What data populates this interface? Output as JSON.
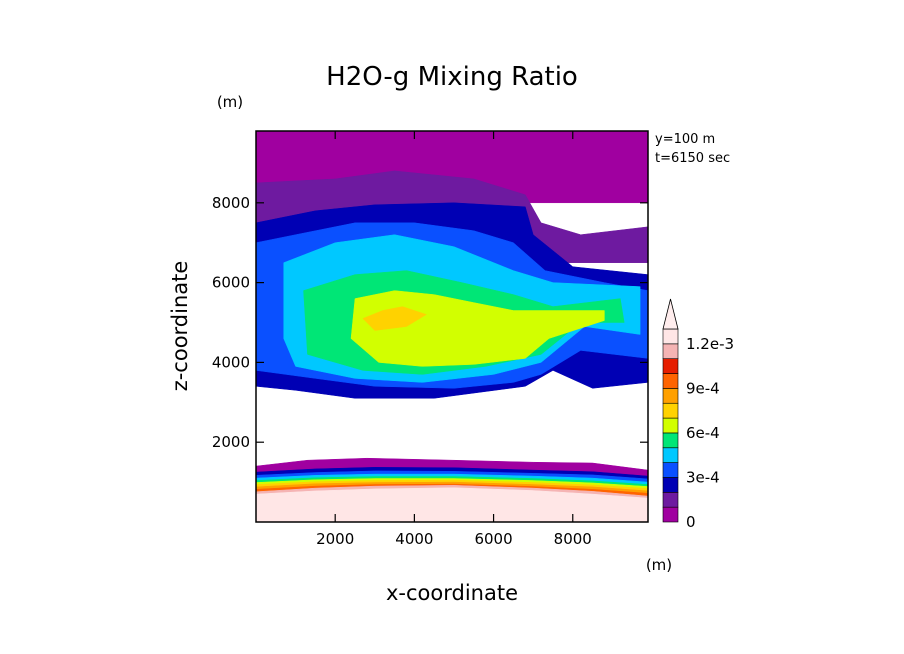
{
  "chart_data": {
    "type": "heatmap",
    "title": "H2O-g Mixing Ratio",
    "xlabel": "x-coordinate",
    "ylabel": "z-coordinate",
    "x_unit": "(m)",
    "y_unit": "(m)",
    "xlim": [
      0,
      9900
    ],
    "ylim": [
      0,
      9800
    ],
    "x_ticks": [
      "2000",
      "4000",
      "6000",
      "8000"
    ],
    "y_ticks": [
      "2000",
      "4000",
      "6000",
      "8000"
    ],
    "annotations": [
      "y=100 m",
      "t=6150 sec"
    ],
    "colorbar": {
      "tick_labels": [
        "0",
        "3e-4",
        "6e-4",
        "9e-4",
        "1.2e-3"
      ],
      "levels": [
        0,
        0.0001,
        0.0002,
        0.0003,
        0.0004,
        0.0005,
        0.0006,
        0.0007,
        0.0008,
        0.0009,
        0.001,
        0.0011,
        0.0012
      ],
      "colors": [
        "#a000a0",
        "#6e1aa0",
        "#0000b4",
        "#0a50ff",
        "#00c8ff",
        "#00e676",
        "#d2ff00",
        "#ffd200",
        "#ffa000",
        "#ff6400",
        "#e61e00",
        "#f5b4b4",
        "#ffe6e6"
      ],
      "extend": "max"
    },
    "layers": [
      {
        "level": 0,
        "color": "#a000a0",
        "points": [
          [
            0,
            9800
          ],
          [
            9900,
            9800
          ],
          [
            9900,
            8000
          ],
          [
            0,
            8000
          ]
        ]
      },
      {
        "level": 1,
        "color": "#6e1aa0",
        "points": [
          [
            0,
            8500
          ],
          [
            2000,
            8600
          ],
          [
            3500,
            8800
          ],
          [
            5500,
            8600
          ],
          [
            6800,
            8200
          ],
          [
            7200,
            7500
          ],
          [
            8200,
            7200
          ],
          [
            9900,
            7400
          ],
          [
            9900,
            6500
          ],
          [
            0,
            6500
          ]
        ]
      },
      {
        "level": 2,
        "color": "#0000b4",
        "points": [
          [
            0,
            7500
          ],
          [
            1500,
            7800
          ],
          [
            3000,
            7950
          ],
          [
            5000,
            8000
          ],
          [
            6800,
            7900
          ],
          [
            7000,
            7200
          ],
          [
            8000,
            6400
          ],
          [
            9900,
            6200
          ],
          [
            9900,
            3500
          ],
          [
            8500,
            3350
          ],
          [
            7500,
            3800
          ],
          [
            6800,
            3400
          ],
          [
            4500,
            3100
          ],
          [
            2500,
            3100
          ],
          [
            1000,
            3300
          ],
          [
            0,
            3400
          ]
        ]
      },
      {
        "level": 3,
        "color": "#0a50ff",
        "points": [
          [
            0,
            7000
          ],
          [
            1000,
            7200
          ],
          [
            2500,
            7500
          ],
          [
            4000,
            7500
          ],
          [
            5500,
            7300
          ],
          [
            6500,
            7000
          ],
          [
            7300,
            6300
          ],
          [
            8800,
            6000
          ],
          [
            9900,
            5800
          ],
          [
            9900,
            4100
          ],
          [
            8200,
            4300
          ],
          [
            7200,
            3700
          ],
          [
            6500,
            3500
          ],
          [
            5000,
            3350
          ],
          [
            3000,
            3400
          ],
          [
            1500,
            3600
          ],
          [
            0,
            3800
          ]
        ]
      },
      {
        "level": 4,
        "color": "#00c8ff",
        "points": [
          [
            700,
            6500
          ],
          [
            2000,
            7000
          ],
          [
            3500,
            7200
          ],
          [
            5000,
            6900
          ],
          [
            6500,
            6300
          ],
          [
            7500,
            6000
          ],
          [
            9700,
            5900
          ],
          [
            9700,
            4700
          ],
          [
            8300,
            4900
          ],
          [
            7200,
            4000
          ],
          [
            6000,
            3700
          ],
          [
            4200,
            3500
          ],
          [
            2500,
            3600
          ],
          [
            1000,
            3900
          ],
          [
            700,
            4600
          ]
        ]
      },
      {
        "level": 5,
        "color": "#00e676",
        "points": [
          [
            1200,
            5800
          ],
          [
            2500,
            6200
          ],
          [
            3800,
            6300
          ],
          [
            5200,
            6000
          ],
          [
            6500,
            5700
          ],
          [
            7500,
            5400
          ],
          [
            9200,
            5600
          ],
          [
            9300,
            5000
          ],
          [
            8200,
            5000
          ],
          [
            7200,
            4200
          ],
          [
            5800,
            3900
          ],
          [
            4200,
            3700
          ],
          [
            2700,
            3800
          ],
          [
            1300,
            4200
          ]
        ]
      },
      {
        "level": 6,
        "color": "#d2ff00",
        "points": [
          [
            2500,
            5600
          ],
          [
            3500,
            5800
          ],
          [
            4500,
            5700
          ],
          [
            5500,
            5500
          ],
          [
            6500,
            5300
          ],
          [
            7600,
            5300
          ],
          [
            8800,
            5300
          ],
          [
            8800,
            5050
          ],
          [
            7400,
            4600
          ],
          [
            6800,
            4100
          ],
          [
            5500,
            3950
          ],
          [
            4200,
            3900
          ],
          [
            3100,
            4000
          ],
          [
            2400,
            4600
          ]
        ]
      },
      {
        "level": 7,
        "color": "#ffd200",
        "points": [
          [
            2700,
            5100
          ],
          [
            3200,
            5300
          ],
          [
            3700,
            5400
          ],
          [
            4300,
            5200
          ],
          [
            3800,
            4900
          ],
          [
            3000,
            4800
          ]
        ]
      },
      {
        "level": 0,
        "color": "#a000a0",
        "points": [
          [
            0,
            1400
          ],
          [
            1300,
            1550
          ],
          [
            2800,
            1600
          ],
          [
            5000,
            1550
          ],
          [
            7000,
            1500
          ],
          [
            8500,
            1480
          ],
          [
            9900,
            1300
          ],
          [
            9900,
            500
          ],
          [
            0,
            500
          ]
        ]
      },
      {
        "level": 2,
        "color": "#0000b4",
        "points": [
          [
            0,
            1250
          ],
          [
            1500,
            1330
          ],
          [
            3000,
            1370
          ],
          [
            5000,
            1360
          ],
          [
            7000,
            1300
          ],
          [
            8500,
            1260
          ],
          [
            9900,
            1150
          ],
          [
            9900,
            500
          ],
          [
            0,
            500
          ]
        ]
      },
      {
        "level": 3,
        "color": "#0a50ff",
        "points": [
          [
            0,
            1170
          ],
          [
            1500,
            1240
          ],
          [
            3000,
            1280
          ],
          [
            5000,
            1270
          ],
          [
            7000,
            1220
          ],
          [
            8500,
            1180
          ],
          [
            9900,
            1080
          ],
          [
            9900,
            500
          ],
          [
            0,
            500
          ]
        ]
      },
      {
        "level": 4,
        "color": "#00c8ff",
        "points": [
          [
            0,
            1100
          ],
          [
            1500,
            1170
          ],
          [
            3000,
            1200
          ],
          [
            5000,
            1200
          ],
          [
            7000,
            1150
          ],
          [
            8500,
            1100
          ],
          [
            9900,
            1000
          ],
          [
            9900,
            500
          ],
          [
            0,
            500
          ]
        ]
      },
      {
        "level": 5,
        "color": "#00e676",
        "points": [
          [
            0,
            1040
          ],
          [
            1500,
            1110
          ],
          [
            3000,
            1140
          ],
          [
            5000,
            1140
          ],
          [
            7000,
            1090
          ],
          [
            8500,
            1030
          ],
          [
            9900,
            940
          ],
          [
            9900,
            500
          ],
          [
            0,
            500
          ]
        ]
      },
      {
        "level": 6,
        "color": "#d2ff00",
        "points": [
          [
            0,
            990
          ],
          [
            1500,
            1060
          ],
          [
            3000,
            1090
          ],
          [
            5000,
            1090
          ],
          [
            7000,
            1040
          ],
          [
            8500,
            980
          ],
          [
            9900,
            890
          ],
          [
            9900,
            500
          ],
          [
            0,
            500
          ]
        ]
      },
      {
        "level": 7,
        "color": "#ffd200",
        "points": [
          [
            0,
            940
          ],
          [
            1500,
            1010
          ],
          [
            3000,
            1040
          ],
          [
            5000,
            1050
          ],
          [
            7000,
            990
          ],
          [
            8500,
            930
          ],
          [
            9900,
            840
          ],
          [
            9900,
            500
          ],
          [
            0,
            500
          ]
        ]
      },
      {
        "level": 8,
        "color": "#ffa000",
        "points": [
          [
            0,
            880
          ],
          [
            1500,
            960
          ],
          [
            3000,
            990
          ],
          [
            5000,
            1000
          ],
          [
            7000,
            940
          ],
          [
            8500,
            880
          ],
          [
            9900,
            780
          ],
          [
            9900,
            500
          ],
          [
            0,
            500
          ]
        ]
      },
      {
        "level": 9,
        "color": "#ff6400",
        "points": [
          [
            0,
            820
          ],
          [
            1500,
            900
          ],
          [
            3000,
            940
          ],
          [
            5000,
            950
          ],
          [
            7000,
            890
          ],
          [
            8500,
            820
          ],
          [
            9900,
            720
          ],
          [
            9900,
            500
          ],
          [
            0,
            500
          ]
        ]
      },
      {
        "level": 11,
        "color": "#f5b4b4",
        "points": [
          [
            0,
            760
          ],
          [
            1500,
            850
          ],
          [
            3000,
            900
          ],
          [
            5000,
            920
          ],
          [
            7000,
            850
          ],
          [
            8500,
            770
          ],
          [
            9900,
            650
          ],
          [
            9900,
            0
          ],
          [
            0,
            0
          ]
        ]
      },
      {
        "level": 12,
        "color": "#ffe6e6",
        "points": [
          [
            0,
            700
          ],
          [
            1500,
            780
          ],
          [
            3000,
            830
          ],
          [
            5000,
            860
          ],
          [
            7000,
            790
          ],
          [
            8500,
            700
          ],
          [
            9900,
            600
          ],
          [
            9900,
            0
          ],
          [
            0,
            0
          ]
        ]
      }
    ]
  }
}
